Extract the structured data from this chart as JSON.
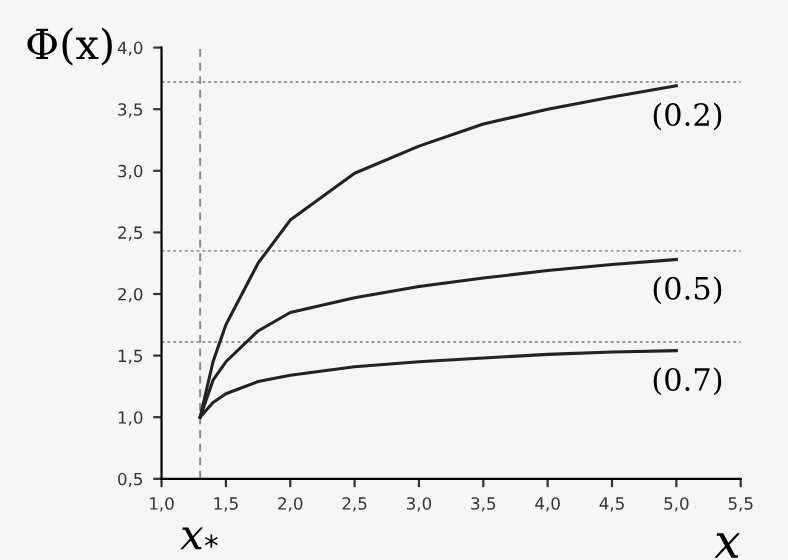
{
  "chart_data": {
    "type": "line",
    "xlabel": "x",
    "ylabel": "Φ(x)",
    "xlim": [
      1.0,
      5.5
    ],
    "ylim": [
      0.5,
      4.0
    ],
    "xticks": [
      {
        "value": 1.0,
        "label": "1,0"
      },
      {
        "value": 1.5,
        "label": "1,5"
      },
      {
        "value": 2.0,
        "label": "2,0"
      },
      {
        "value": 2.5,
        "label": "2,5"
      },
      {
        "value": 3.0,
        "label": "3,0"
      },
      {
        "value": 3.5,
        "label": "3,5"
      },
      {
        "value": 4.0,
        "label": "4,0"
      },
      {
        "value": 4.5,
        "label": "4,5"
      },
      {
        "value": 5.0,
        "label": "5,0"
      },
      {
        "value": 5.5,
        "label": "5,5"
      }
    ],
    "yticks": [
      {
        "value": 0.5,
        "label": "0,5"
      },
      {
        "value": 1.0,
        "label": "1,0"
      },
      {
        "value": 1.5,
        "label": "1,5"
      },
      {
        "value": 2.0,
        "label": "2,0"
      },
      {
        "value": 2.5,
        "label": "2,5"
      },
      {
        "value": 3.0,
        "label": "3,0"
      },
      {
        "value": 3.5,
        "label": "3,5"
      },
      {
        "value": 4.0,
        "label": "4,0"
      }
    ],
    "x": [
      1.3,
      1.4,
      1.5,
      1.75,
      2.0,
      2.5,
      3.0,
      3.5,
      4.0,
      4.5,
      5.0
    ],
    "series": [
      {
        "name": "(0.2)",
        "color": "#222222",
        "values": [
          1.0,
          1.45,
          1.75,
          2.25,
          2.6,
          2.98,
          3.2,
          3.38,
          3.5,
          3.6,
          3.69
        ]
      },
      {
        "name": "(0.5)",
        "color": "#222222",
        "values": [
          1.0,
          1.3,
          1.45,
          1.7,
          1.85,
          1.97,
          2.06,
          2.13,
          2.19,
          2.24,
          2.28
        ]
      },
      {
        "name": "(0.7)",
        "color": "#222222",
        "values": [
          1.0,
          1.12,
          1.19,
          1.29,
          1.34,
          1.41,
          1.45,
          1.48,
          1.51,
          1.53,
          1.54
        ]
      }
    ],
    "ref_lines": [
      {
        "axis": "x",
        "value": 1.3,
        "label": "x$_{*}$",
        "color": "#888888",
        "line_style": "dashed"
      },
      {
        "axis": "y",
        "value": 3.72,
        "color": "#999999",
        "line_style": "dotted"
      },
      {
        "axis": "y",
        "value": 2.35,
        "color": "#999999",
        "line_style": "dotted"
      },
      {
        "axis": "y",
        "value": 1.61,
        "color": "#999999",
        "line_style": "dotted"
      }
    ],
    "grid": false,
    "legend": false,
    "marker": "none",
    "line_style": "solid"
  }
}
